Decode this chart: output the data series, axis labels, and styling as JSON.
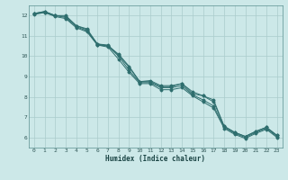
{
  "xlabel": "Humidex (Indice chaleur)",
  "ylabel": "",
  "bg_color": "#cce8e8",
  "grid_color": "#aacccc",
  "line_color": "#2e6e6e",
  "xlim": [
    -0.5,
    23.5
  ],
  "ylim": [
    5.5,
    12.5
  ],
  "xticks": [
    0,
    1,
    2,
    3,
    4,
    5,
    6,
    7,
    8,
    9,
    10,
    11,
    12,
    13,
    14,
    15,
    16,
    17,
    18,
    19,
    20,
    21,
    22,
    23
  ],
  "yticks": [
    6,
    7,
    8,
    9,
    10,
    11,
    12
  ],
  "series": [
    [
      12.1,
      12.2,
      12.0,
      12.0,
      11.5,
      11.3,
      10.55,
      10.5,
      10.1,
      9.5,
      8.75,
      8.8,
      8.55,
      8.55,
      8.65,
      8.15,
      8.05,
      7.75,
      6.55,
      6.25,
      6.05,
      6.3,
      6.5,
      6.1
    ],
    [
      12.1,
      12.2,
      12.0,
      11.95,
      11.5,
      11.35,
      10.6,
      10.55,
      10.05,
      9.45,
      8.75,
      8.75,
      8.5,
      8.5,
      8.65,
      8.25,
      8.05,
      7.85,
      6.55,
      6.25,
      6.05,
      6.3,
      6.5,
      6.1
    ],
    [
      12.1,
      12.15,
      12.0,
      11.9,
      11.45,
      11.25,
      10.6,
      10.5,
      10.0,
      9.3,
      8.7,
      8.7,
      8.45,
      8.45,
      8.55,
      8.1,
      7.85,
      7.55,
      6.5,
      6.2,
      6.0,
      6.25,
      6.45,
      6.05
    ],
    [
      12.05,
      12.15,
      11.95,
      11.85,
      11.4,
      11.2,
      10.55,
      10.45,
      9.85,
      9.2,
      8.65,
      8.65,
      8.35,
      8.35,
      8.45,
      8.05,
      7.75,
      7.45,
      6.45,
      6.15,
      5.95,
      6.2,
      6.4,
      6.0
    ]
  ]
}
